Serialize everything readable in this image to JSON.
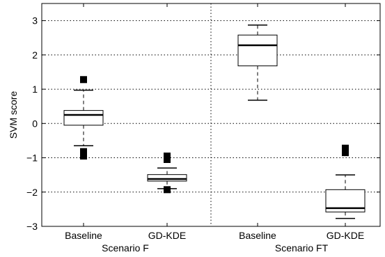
{
  "chart_data": {
    "type": "box",
    "ylabel": "SVM score",
    "ylim": [
      -3,
      3.5
    ],
    "yticks": [
      -3,
      -2,
      -1,
      0,
      1,
      2,
      3
    ],
    "ytick_labels": [
      "−3",
      "−2",
      "−1",
      "0",
      "1",
      "2",
      "3"
    ],
    "grid": true,
    "groups": [
      {
        "label": "Scenario F",
        "categories": [
          "Baseline",
          "GD-KDE"
        ]
      },
      {
        "label": "Scenario FT",
        "categories": [
          "Baseline",
          "GD-KDE"
        ]
      }
    ],
    "boxes": [
      {
        "group": "Scenario F",
        "category": "Baseline",
        "whisker_low": -0.65,
        "q1": -0.05,
        "median": 0.25,
        "q3": 0.38,
        "whisker_high": 0.97,
        "outliers": [
          1.28,
          -0.82,
          -0.95
        ]
      },
      {
        "group": "Scenario F",
        "category": "GD-KDE",
        "whisker_low": -1.9,
        "q1": -1.68,
        "median": -1.62,
        "q3": -1.49,
        "whisker_high": -1.3,
        "outliers": [
          -0.95,
          -1.05,
          -1.93
        ]
      },
      {
        "group": "Scenario FT",
        "category": "Baseline",
        "whisker_low": 0.68,
        "q1": 1.68,
        "median": 2.28,
        "q3": 2.58,
        "whisker_high": 2.87,
        "outliers": []
      },
      {
        "group": "Scenario FT",
        "category": "GD-KDE",
        "whisker_low": -2.77,
        "q1": -2.58,
        "median": -2.47,
        "q3": -1.93,
        "whisker_high": -1.5,
        "outliers": [
          -0.72,
          -0.85
        ]
      }
    ]
  }
}
